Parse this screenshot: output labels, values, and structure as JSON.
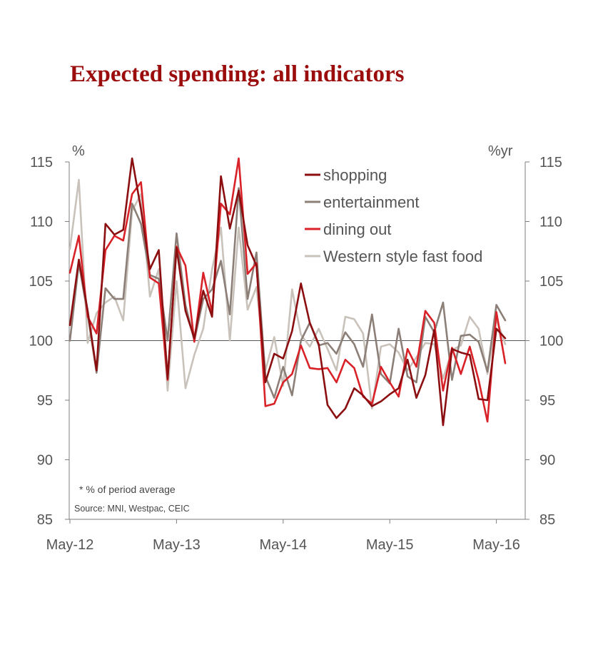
{
  "chart_data": {
    "type": "line",
    "title": "Expected spending: all indicators",
    "left_unit": "%",
    "right_unit": "%yr",
    "ylim": [
      85,
      115
    ],
    "y_ticks": [
      85,
      90,
      95,
      100,
      105,
      110,
      115
    ],
    "y_tick_labels": [
      "85",
      "90",
      "95",
      "100",
      "105",
      "110",
      "115"
    ],
    "x_ticks": [
      {
        "index": 0,
        "label": "May-12"
      },
      {
        "index": 12,
        "label": "May-13"
      },
      {
        "index": 24,
        "label": "May-14"
      },
      {
        "index": 36,
        "label": "May-15"
      },
      {
        "index": 48,
        "label": "May-16"
      }
    ],
    "reference_line": 100,
    "legend_position": "top-right",
    "note": "* % of period average",
    "source": "Source: MNI, Westpac, CEIC",
    "series": [
      {
        "name": "shopping",
        "color": "#8b0e10",
        "values": [
          101.3,
          106.8,
          102.5,
          97.5,
          109.8,
          108.9,
          109.3,
          115.3,
          111.0,
          106.0,
          107.6,
          96.8,
          107.8,
          102.5,
          100.2,
          104.2,
          102.0,
          113.8,
          109.4,
          112.6,
          108.0,
          106.3,
          96.5,
          98.9,
          98.5,
          100.8,
          104.8,
          101.5,
          99.7,
          94.6,
          93.5,
          94.3,
          96.0,
          95.4,
          94.5,
          94.9,
          95.5,
          96.0,
          98.4,
          95.2,
          97.1,
          100.9,
          92.9,
          99.3,
          99.0,
          98.8,
          95.1,
          95.0,
          101.0,
          100.2
        ]
      },
      {
        "name": "entertainment",
        "color": "#8c7f78",
        "values": [
          100.0,
          106.5,
          102.2,
          97.3,
          104.4,
          103.5,
          103.5,
          111.5,
          109.8,
          105.5,
          105.2,
          100.0,
          109.0,
          103.0,
          100.0,
          103.5,
          104.3,
          106.7,
          102.2,
          112.8,
          103.5,
          107.4,
          97.0,
          95.2,
          97.8,
          95.4,
          100.0,
          101.5,
          99.6,
          99.8,
          98.9,
          100.7,
          99.7,
          97.8,
          102.2,
          97.2,
          96.4,
          101.0,
          97.0,
          96.5,
          102.0,
          100.7,
          103.2,
          96.7,
          100.4,
          100.5,
          99.9,
          97.4,
          103.0,
          101.7
        ]
      },
      {
        "name": "dining out",
        "color": "#d92128",
        "values": [
          105.7,
          108.8,
          102.0,
          100.6,
          107.6,
          108.8,
          108.4,
          112.3,
          113.3,
          105.3,
          104.8,
          96.7,
          107.9,
          106.3,
          99.9,
          105.7,
          102.4,
          111.5,
          110.6,
          115.3,
          105.6,
          106.5,
          94.5,
          94.7,
          96.5,
          97.2,
          99.6,
          97.7,
          97.6,
          97.7,
          96.5,
          98.4,
          97.7,
          95.3,
          94.7,
          97.8,
          96.5,
          95.3,
          99.3,
          97.8,
          102.5,
          101.5,
          95.8,
          99.4,
          97.2,
          99.5,
          96.7,
          93.2,
          102.4,
          98.1
        ]
      },
      {
        "name": "Western style fast food",
        "color": "#c9c2bb",
        "values": [
          107.7,
          113.5,
          99.8,
          102.3,
          103.2,
          103.7,
          101.7,
          110.9,
          112.3,
          103.7,
          106.0,
          95.8,
          105.0,
          96.0,
          98.8,
          101.0,
          106.0,
          109.5,
          100.0,
          109.5,
          102.6,
          104.5,
          97.5,
          100.3,
          96.2,
          104.3,
          100.5,
          99.5,
          101.0,
          99.3,
          97.5,
          102.0,
          101.8,
          100.6,
          94.3,
          99.5,
          99.7,
          99.0,
          97.5,
          98.6,
          99.8,
          99.7,
          96.8,
          99.2,
          99.6,
          102.0,
          101.0,
          97.2,
          101.8,
          99.7
        ]
      }
    ]
  }
}
